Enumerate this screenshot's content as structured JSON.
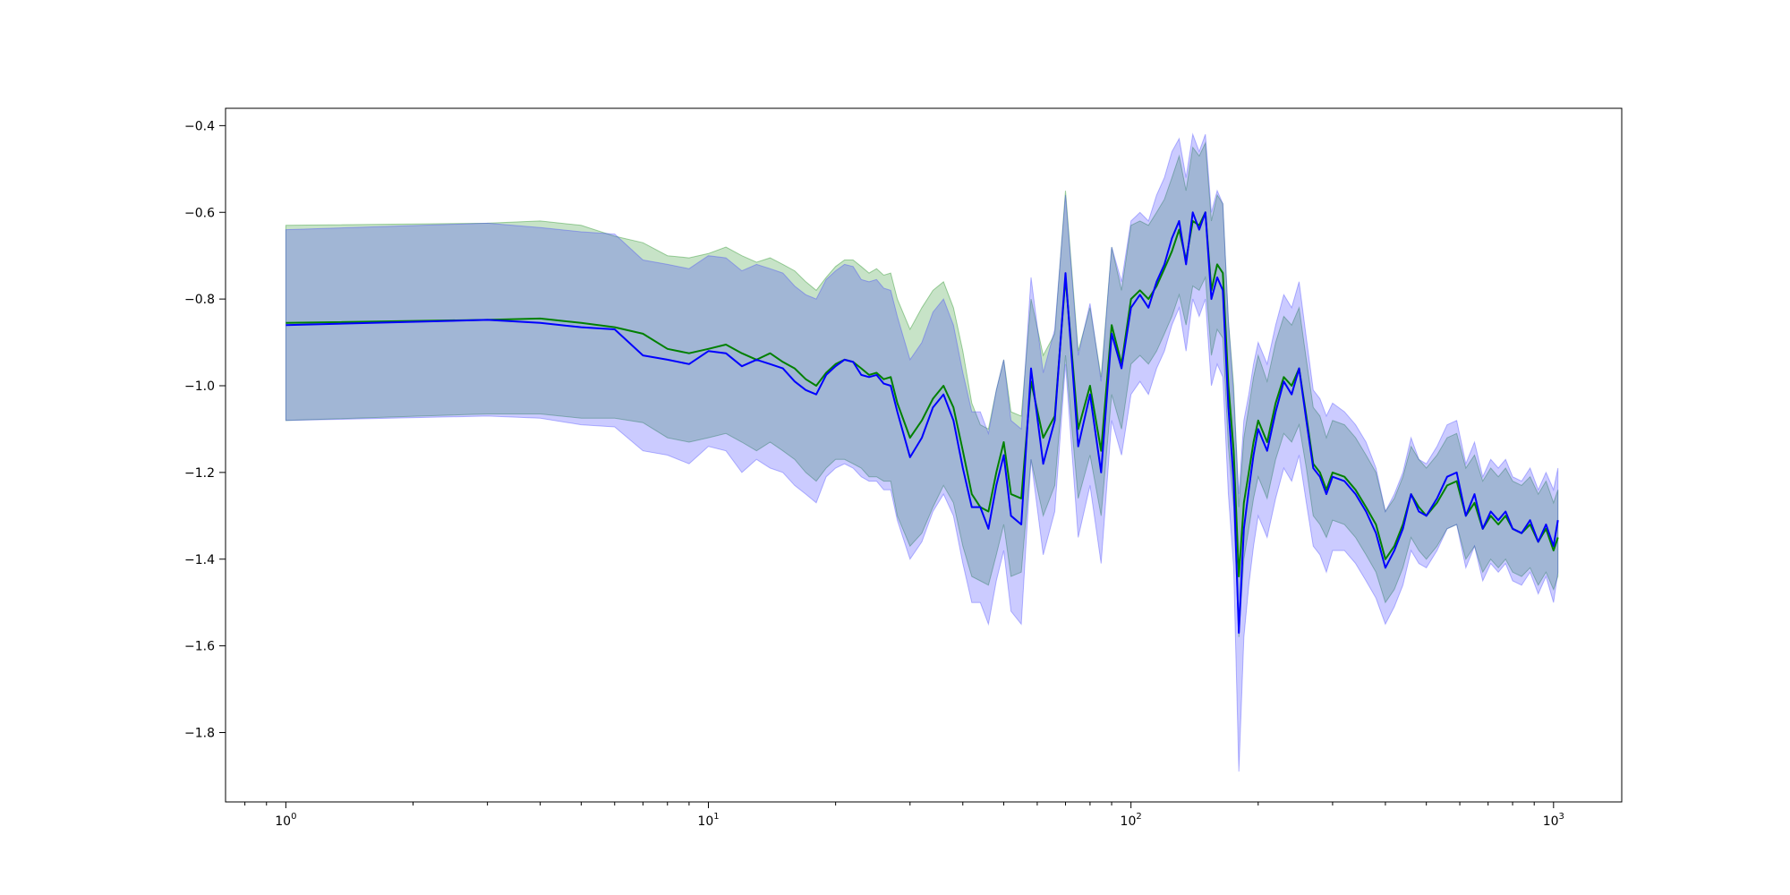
{
  "chart_data": {
    "type": "line",
    "title": "",
    "xlabel": "",
    "ylabel": "",
    "x_scale": "log",
    "xlim": [
      0.72,
      1450
    ],
    "ylim": [
      -1.96,
      -0.36
    ],
    "grid": false,
    "legend": "none",
    "x_ticks": [
      {
        "value": 1,
        "base": "10",
        "exp": "0"
      },
      {
        "value": 10,
        "base": "10",
        "exp": "1"
      },
      {
        "value": 100,
        "base": "10",
        "exp": "2"
      },
      {
        "value": 1000,
        "base": "10",
        "exp": "3"
      }
    ],
    "y_ticks": [
      {
        "value": -0.4,
        "label": "−0.4"
      },
      {
        "value": -0.6,
        "label": "−0.6"
      },
      {
        "value": -0.8,
        "label": "−0.8"
      },
      {
        "value": -1.0,
        "label": "−1.0"
      },
      {
        "value": -1.2,
        "label": "−1.2"
      },
      {
        "value": -1.4,
        "label": "−1.4"
      },
      {
        "value": -1.6,
        "label": "−1.6"
      },
      {
        "value": -1.8,
        "label": "−1.8"
      }
    ],
    "series": [
      {
        "color": "#008000",
        "band_color": "#008000",
        "band_opacity": 0.22,
        "x": [
          1,
          3,
          4,
          5,
          6,
          7,
          8,
          9,
          10,
          11,
          12,
          13,
          14,
          15,
          16,
          17,
          18,
          19,
          20,
          21,
          22,
          23,
          24,
          25,
          26,
          27,
          28,
          30,
          32,
          34,
          36,
          38,
          40,
          42,
          44,
          46,
          48,
          50,
          52,
          55,
          58,
          62,
          66,
          70,
          75,
          80,
          85,
          90,
          95,
          100,
          105,
          110,
          115,
          120,
          125,
          130,
          135,
          140,
          145,
          150,
          155,
          160,
          165,
          170,
          175,
          180,
          185,
          190,
          195,
          200,
          210,
          220,
          230,
          240,
          250,
          260,
          270,
          280,
          290,
          300,
          320,
          340,
          360,
          380,
          400,
          420,
          440,
          460,
          480,
          500,
          530,
          560,
          590,
          620,
          650,
          680,
          710,
          740,
          770,
          800,
          840,
          880,
          920,
          960,
          1000,
          1024
        ],
        "y": [
          -0.855,
          -0.848,
          -0.845,
          -0.855,
          -0.865,
          -0.88,
          -0.915,
          -0.925,
          -0.915,
          -0.905,
          -0.925,
          -0.94,
          -0.925,
          -0.945,
          -0.96,
          -0.985,
          -1.0,
          -0.97,
          -0.95,
          -0.94,
          -0.945,
          -0.96,
          -0.975,
          -0.97,
          -0.985,
          -0.98,
          -1.04,
          -1.12,
          -1.08,
          -1.03,
          -1.0,
          -1.05,
          -1.15,
          -1.25,
          -1.28,
          -1.29,
          -1.2,
          -1.13,
          -1.25,
          -1.26,
          -0.99,
          -1.12,
          -1.07,
          -0.75,
          -1.1,
          -1.0,
          -1.15,
          -0.86,
          -0.95,
          -0.8,
          -0.78,
          -0.8,
          -0.77,
          -0.73,
          -0.69,
          -0.64,
          -0.71,
          -0.62,
          -0.63,
          -0.6,
          -0.78,
          -0.72,
          -0.74,
          -1.0,
          -1.15,
          -1.44,
          -1.27,
          -1.2,
          -1.13,
          -1.08,
          -1.13,
          -1.04,
          -0.98,
          -1.0,
          -0.96,
          -1.07,
          -1.18,
          -1.2,
          -1.24,
          -1.2,
          -1.21,
          -1.24,
          -1.28,
          -1.32,
          -1.4,
          -1.37,
          -1.32,
          -1.25,
          -1.28,
          -1.3,
          -1.27,
          -1.23,
          -1.22,
          -1.3,
          -1.27,
          -1.33,
          -1.3,
          -1.32,
          -1.3,
          -1.33,
          -1.34,
          -1.32,
          -1.36,
          -1.33,
          -1.38,
          -1.35
        ],
        "lower": [
          -1.08,
          -1.065,
          -1.065,
          -1.075,
          -1.075,
          -1.085,
          -1.12,
          -1.13,
          -1.12,
          -1.11,
          -1.13,
          -1.15,
          -1.13,
          -1.15,
          -1.17,
          -1.2,
          -1.22,
          -1.19,
          -1.17,
          -1.17,
          -1.18,
          -1.19,
          -1.21,
          -1.21,
          -1.22,
          -1.22,
          -1.3,
          -1.37,
          -1.34,
          -1.28,
          -1.23,
          -1.27,
          -1.37,
          -1.44,
          -1.45,
          -1.46,
          -1.39,
          -1.32,
          -1.44,
          -1.43,
          -1.17,
          -1.3,
          -1.23,
          -0.93,
          -1.26,
          -1.16,
          -1.3,
          -1.02,
          -1.1,
          -0.95,
          -0.93,
          -0.95,
          -0.92,
          -0.88,
          -0.84,
          -0.79,
          -0.86,
          -0.77,
          -0.78,
          -0.75,
          -0.93,
          -0.87,
          -0.89,
          -1.14,
          -1.28,
          -1.58,
          -1.4,
          -1.33,
          -1.26,
          -1.21,
          -1.26,
          -1.17,
          -1.11,
          -1.13,
          -1.09,
          -1.19,
          -1.3,
          -1.32,
          -1.35,
          -1.31,
          -1.32,
          -1.35,
          -1.39,
          -1.43,
          -1.5,
          -1.47,
          -1.42,
          -1.35,
          -1.38,
          -1.4,
          -1.37,
          -1.33,
          -1.32,
          -1.4,
          -1.37,
          -1.43,
          -1.4,
          -1.42,
          -1.4,
          -1.43,
          -1.44,
          -1.42,
          -1.46,
          -1.43,
          -1.47,
          -1.44
        ],
        "upper": [
          -0.63,
          -0.625,
          -0.62,
          -0.63,
          -0.655,
          -0.67,
          -0.7,
          -0.705,
          -0.695,
          -0.68,
          -0.7,
          -0.715,
          -0.705,
          -0.72,
          -0.735,
          -0.76,
          -0.78,
          -0.75,
          -0.725,
          -0.71,
          -0.71,
          -0.725,
          -0.74,
          -0.73,
          -0.745,
          -0.74,
          -0.8,
          -0.87,
          -0.82,
          -0.78,
          -0.76,
          -0.82,
          -0.92,
          -1.04,
          -1.09,
          -1.1,
          -1.01,
          -0.94,
          -1.06,
          -1.07,
          -0.8,
          -0.93,
          -0.88,
          -0.55,
          -0.92,
          -0.82,
          -0.98,
          -0.68,
          -0.78,
          -0.63,
          -0.62,
          -0.63,
          -0.6,
          -0.57,
          -0.52,
          -0.47,
          -0.55,
          -0.45,
          -0.47,
          -0.44,
          -0.62,
          -0.56,
          -0.58,
          -0.85,
          -1.0,
          -1.28,
          -1.12,
          -1.05,
          -0.98,
          -0.93,
          -0.99,
          -0.9,
          -0.84,
          -0.86,
          -0.82,
          -0.94,
          -1.05,
          -1.07,
          -1.12,
          -1.08,
          -1.09,
          -1.12,
          -1.16,
          -1.2,
          -1.29,
          -1.26,
          -1.21,
          -1.14,
          -1.17,
          -1.19,
          -1.16,
          -1.12,
          -1.11,
          -1.19,
          -1.16,
          -1.22,
          -1.19,
          -1.21,
          -1.19,
          -1.22,
          -1.23,
          -1.21,
          -1.25,
          -1.22,
          -1.27,
          -1.24
        ]
      },
      {
        "color": "#0000ff",
        "band_color": "#3838ff",
        "band_opacity": 0.26,
        "x": [
          1,
          3,
          4,
          5,
          6,
          7,
          8,
          9,
          10,
          11,
          12,
          13,
          14,
          15,
          16,
          17,
          18,
          19,
          20,
          21,
          22,
          23,
          24,
          25,
          26,
          27,
          28,
          30,
          32,
          34,
          36,
          38,
          40,
          42,
          44,
          46,
          48,
          50,
          52,
          55,
          58,
          62,
          66,
          70,
          75,
          80,
          85,
          90,
          95,
          100,
          105,
          110,
          115,
          120,
          125,
          130,
          135,
          140,
          145,
          150,
          155,
          160,
          165,
          170,
          175,
          180,
          185,
          190,
          195,
          200,
          210,
          220,
          230,
          240,
          250,
          260,
          270,
          280,
          290,
          300,
          320,
          340,
          360,
          380,
          400,
          420,
          440,
          460,
          480,
          500,
          530,
          560,
          590,
          620,
          650,
          680,
          710,
          740,
          770,
          800,
          840,
          880,
          920,
          960,
          1000,
          1024
        ],
        "y": [
          -0.86,
          -0.848,
          -0.855,
          -0.865,
          -0.87,
          -0.93,
          -0.94,
          -0.95,
          -0.92,
          -0.925,
          -0.955,
          -0.94,
          -0.95,
          -0.96,
          -0.99,
          -1.01,
          -1.02,
          -0.975,
          -0.955,
          -0.94,
          -0.945,
          -0.975,
          -0.98,
          -0.975,
          -0.995,
          -1.0,
          -1.06,
          -1.165,
          -1.12,
          -1.05,
          -1.02,
          -1.08,
          -1.19,
          -1.28,
          -1.28,
          -1.33,
          -1.23,
          -1.16,
          -1.3,
          -1.32,
          -0.96,
          -1.18,
          -1.08,
          -0.74,
          -1.14,
          -1.02,
          -1.2,
          -0.88,
          -0.96,
          -0.82,
          -0.79,
          -0.82,
          -0.76,
          -0.72,
          -0.66,
          -0.62,
          -0.72,
          -0.6,
          -0.64,
          -0.6,
          -0.8,
          -0.75,
          -0.78,
          -1.05,
          -1.22,
          -1.57,
          -1.33,
          -1.24,
          -1.16,
          -1.1,
          -1.15,
          -1.06,
          -0.99,
          -1.02,
          -0.96,
          -1.08,
          -1.19,
          -1.21,
          -1.25,
          -1.21,
          -1.22,
          -1.25,
          -1.29,
          -1.34,
          -1.42,
          -1.38,
          -1.33,
          -1.25,
          -1.29,
          -1.3,
          -1.26,
          -1.21,
          -1.2,
          -1.3,
          -1.25,
          -1.33,
          -1.29,
          -1.31,
          -1.29,
          -1.33,
          -1.34,
          -1.31,
          -1.36,
          -1.32,
          -1.37,
          -1.31
        ],
        "lower": [
          -1.08,
          -1.07,
          -1.075,
          -1.09,
          -1.095,
          -1.15,
          -1.16,
          -1.18,
          -1.14,
          -1.15,
          -1.2,
          -1.17,
          -1.19,
          -1.2,
          -1.23,
          -1.25,
          -1.27,
          -1.21,
          -1.19,
          -1.18,
          -1.19,
          -1.21,
          -1.22,
          -1.22,
          -1.24,
          -1.24,
          -1.31,
          -1.4,
          -1.36,
          -1.29,
          -1.25,
          -1.3,
          -1.41,
          -1.5,
          -1.5,
          -1.55,
          -1.45,
          -1.38,
          -1.52,
          -1.55,
          -1.17,
          -1.39,
          -1.29,
          -0.95,
          -1.35,
          -1.23,
          -1.41,
          -1.08,
          -1.16,
          -1.02,
          -0.99,
          -1.02,
          -0.96,
          -0.92,
          -0.86,
          -0.82,
          -0.92,
          -0.8,
          -0.84,
          -0.8,
          -1.0,
          -0.95,
          -0.98,
          -1.25,
          -1.42,
          -1.89,
          -1.58,
          -1.46,
          -1.37,
          -1.3,
          -1.35,
          -1.26,
          -1.19,
          -1.22,
          -1.16,
          -1.27,
          -1.37,
          -1.39,
          -1.43,
          -1.38,
          -1.38,
          -1.41,
          -1.45,
          -1.49,
          -1.55,
          -1.51,
          -1.46,
          -1.38,
          -1.41,
          -1.42,
          -1.38,
          -1.33,
          -1.32,
          -1.42,
          -1.37,
          -1.45,
          -1.41,
          -1.43,
          -1.41,
          -1.45,
          -1.46,
          -1.43,
          -1.48,
          -1.44,
          -1.5,
          -1.43
        ],
        "upper": [
          -0.64,
          -0.625,
          -0.635,
          -0.645,
          -0.65,
          -0.71,
          -0.72,
          -0.73,
          -0.7,
          -0.705,
          -0.735,
          -0.72,
          -0.73,
          -0.74,
          -0.77,
          -0.79,
          -0.8,
          -0.755,
          -0.735,
          -0.72,
          -0.725,
          -0.755,
          -0.76,
          -0.755,
          -0.775,
          -0.78,
          -0.84,
          -0.94,
          -0.9,
          -0.83,
          -0.8,
          -0.86,
          -0.97,
          -1.06,
          -1.06,
          -1.11,
          -1.01,
          -0.94,
          -1.08,
          -1.1,
          -0.75,
          -0.97,
          -0.87,
          -0.56,
          -0.93,
          -0.81,
          -0.99,
          -0.68,
          -0.76,
          -0.62,
          -0.6,
          -0.62,
          -0.56,
          -0.52,
          -0.46,
          -0.43,
          -0.52,
          -0.42,
          -0.46,
          -0.42,
          -0.6,
          -0.55,
          -0.58,
          -0.85,
          -1.02,
          -1.25,
          -1.08,
          -1.02,
          -0.95,
          -0.9,
          -0.95,
          -0.86,
          -0.79,
          -0.82,
          -0.76,
          -0.89,
          -1.01,
          -1.03,
          -1.07,
          -1.04,
          -1.06,
          -1.09,
          -1.13,
          -1.19,
          -1.29,
          -1.25,
          -1.2,
          -1.12,
          -1.17,
          -1.18,
          -1.14,
          -1.09,
          -1.08,
          -1.18,
          -1.13,
          -1.21,
          -1.17,
          -1.19,
          -1.17,
          -1.21,
          -1.22,
          -1.19,
          -1.24,
          -1.2,
          -1.24,
          -1.19
        ]
      }
    ]
  }
}
